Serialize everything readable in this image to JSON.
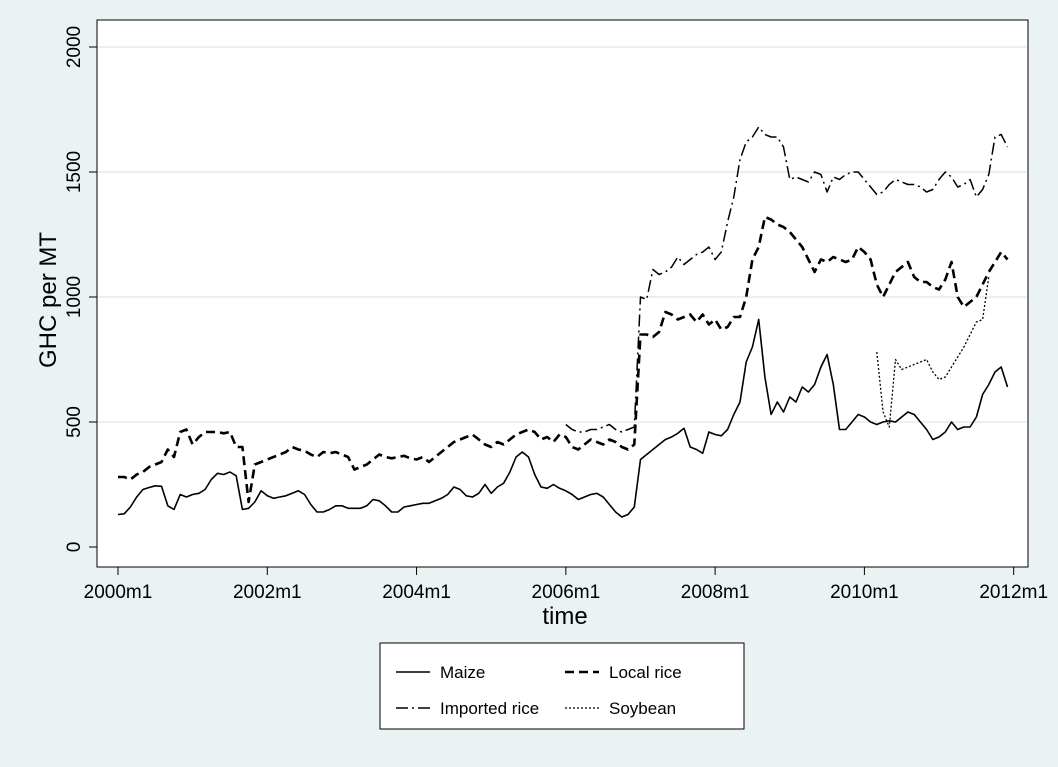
{
  "chart_data": {
    "type": "line",
    "xlabel": "time",
    "ylabel": "GHC per MT",
    "xlim": [
      "2000m1",
      "2012m1"
    ],
    "ylim": [
      0,
      2000
    ],
    "x_ticks": [
      "2000m1",
      "2002m1",
      "2004m1",
      "2006m1",
      "2008m1",
      "2010m1",
      "2012m1"
    ],
    "y_ticks": [
      "0",
      "500",
      "1000",
      "1500",
      "2000"
    ],
    "grid": "horizontal",
    "legend_position": "bottom",
    "series": [
      {
        "name": "Maize",
        "style": "solid",
        "start": "2000m1",
        "values": [
          130,
          133,
          160,
          200,
          230,
          238,
          245,
          243,
          165,
          150,
          210,
          200,
          210,
          215,
          230,
          270,
          295,
          290,
          300,
          285,
          150,
          155,
          180,
          225,
          205,
          195,
          200,
          205,
          215,
          225,
          210,
          170,
          140,
          140,
          150,
          165,
          165,
          155,
          155,
          155,
          165,
          190,
          185,
          165,
          140,
          140,
          160,
          165,
          170,
          175,
          175,
          185,
          195,
          210,
          240,
          230,
          205,
          200,
          215,
          250,
          215,
          240,
          255,
          300,
          360,
          380,
          360,
          290,
          240,
          235,
          250,
          235,
          225,
          210,
          190,
          200,
          210,
          215,
          200,
          170,
          140,
          120,
          130,
          160,
          350,
          370,
          390,
          410,
          430,
          440,
          455,
          475,
          400,
          390,
          375,
          460,
          450,
          445,
          470,
          530,
          580,
          740,
          800,
          910,
          680,
          530,
          580,
          540,
          600,
          580,
          640,
          620,
          650,
          720,
          770,
          650,
          470,
          470,
          500,
          530,
          520,
          500,
          490,
          500,
          505,
          500,
          520,
          540,
          530,
          500,
          470,
          430,
          440,
          460,
          500,
          470,
          480,
          480,
          520,
          610,
          650,
          700,
          720,
          640
        ]
      },
      {
        "name": "Local rice",
        "style": "dash",
        "start": "2000m1",
        "values": [
          280,
          280,
          270,
          290,
          300,
          320,
          330,
          340,
          390,
          360,
          460,
          470,
          410,
          440,
          460,
          460,
          460,
          455,
          460,
          400,
          400,
          180,
          330,
          340,
          350,
          360,
          370,
          380,
          400,
          390,
          385,
          370,
          360,
          380,
          375,
          380,
          370,
          360,
          310,
          320,
          330,
          350,
          370,
          360,
          355,
          360,
          365,
          355,
          350,
          360,
          340,
          360,
          380,
          400,
          420,
          430,
          440,
          450,
          430,
          410,
          400,
          420,
          410,
          430,
          450,
          460,
          470,
          460,
          430,
          440,
          420,
          450,
          440,
          400,
          390,
          410,
          430,
          420,
          410,
          430,
          420,
          400,
          390,
          410,
          850,
          850,
          840,
          860,
          940,
          930,
          910,
          920,
          930,
          900,
          930,
          890,
          910,
          870,
          880,
          920,
          920,
          1000,
          1150,
          1200,
          1320,
          1310,
          1290,
          1280,
          1260,
          1230,
          1200,
          1150,
          1100,
          1150,
          1140,
          1160,
          1150,
          1140,
          1150,
          1200,
          1180,
          1150,
          1050,
          1000,
          1050,
          1100,
          1120,
          1140,
          1080,
          1060,
          1060,
          1040,
          1030,
          1070,
          1140,
          1000,
          960,
          980,
          1000,
          1050,
          1100,
          1140,
          1180,
          1150
        ]
      },
      {
        "name": "Imported rice",
        "style": "dashdot",
        "start": "2006m1",
        "values": [
          490,
          470,
          460,
          460,
          470,
          470,
          480,
          490,
          470,
          460,
          470,
          480,
          1000,
          990,
          1110,
          1090,
          1100,
          1120,
          1160,
          1130,
          1150,
          1170,
          1180,
          1200,
          1150,
          1180,
          1300,
          1400,
          1550,
          1620,
          1640,
          1680,
          1650,
          1640,
          1640,
          1600,
          1470,
          1480,
          1470,
          1460,
          1500,
          1490,
          1420,
          1480,
          1470,
          1490,
          1500,
          1500,
          1470,
          1440,
          1410,
          1420,
          1450,
          1470,
          1460,
          1450,
          1450,
          1440,
          1420,
          1430,
          1470,
          1500,
          1480,
          1440,
          1450,
          1470,
          1400,
          1430,
          1490,
          1640,
          1650,
          1600
        ]
      },
      {
        "name": "Soybean",
        "style": "dot",
        "start": "2010m3",
        "values": [
          780,
          540,
          480,
          750,
          710,
          720,
          730,
          740,
          750,
          700,
          670,
          680,
          720,
          760,
          800,
          850,
          900,
          910,
          1080
        ]
      }
    ]
  }
}
